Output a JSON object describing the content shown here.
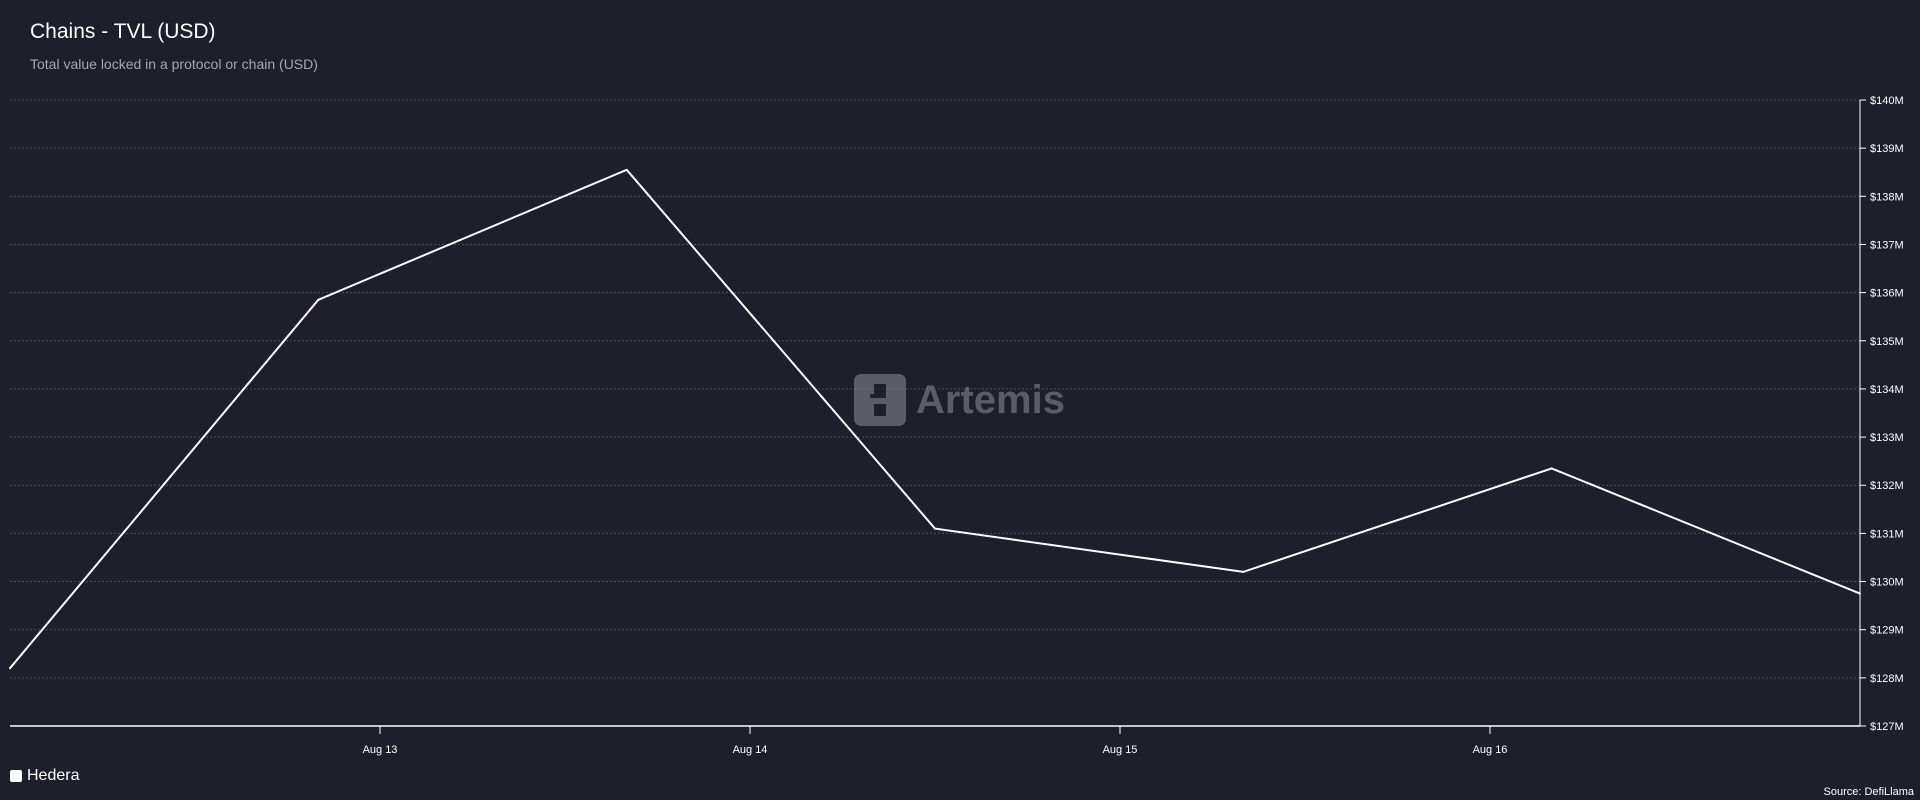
{
  "header": {
    "title": "Chains - TVL (USD)",
    "subtitle": "Total value locked in a protocol or chain (USD)"
  },
  "footer": {
    "source": "Source: DefiLlama"
  },
  "watermark": {
    "brand": "Artemis",
    "icon": "artemis-logo-icon"
  },
  "colors": {
    "background": "#1d1f2a",
    "line": "#ffffff",
    "grid": "#4a4d5a",
    "text": "#ffffff",
    "subtitle": "#a3a6b4"
  },
  "chart_data": {
    "type": "line",
    "title": "Chains - TVL (USD)",
    "subtitle": "Total value locked in a protocol or chain (USD)",
    "xlabel": "",
    "ylabel": "",
    "x": [
      "2024-08-12",
      "2024-08-12T20:00",
      "2024-08-13T16:00",
      "2024-08-14T12:00",
      "2024-08-15T08:00",
      "2024-08-16T04:00",
      "2024-08-17T00:00"
    ],
    "xlim": [
      "2024-08-12",
      "2024-08-17T00:00"
    ],
    "x_ticks": [
      "2024-08-13",
      "2024-08-14",
      "2024-08-15",
      "2024-08-16"
    ],
    "x_tick_labels": [
      "Aug 13",
      "Aug 14",
      "Aug 15",
      "Aug 16"
    ],
    "series": [
      {
        "name": "Hedera",
        "color": "#ffffff",
        "values": [
          128.2,
          135.85,
          138.55,
          131.1,
          130.2,
          132.35,
          129.75
        ]
      }
    ],
    "ylim": [
      127,
      140
    ],
    "y_ticks": [
      127,
      128,
      129,
      130,
      131,
      132,
      133,
      134,
      135,
      136,
      137,
      138,
      139,
      140
    ],
    "y_tick_labels": [
      "$127M",
      "$128M",
      "$129M",
      "$130M",
      "$131M",
      "$132M",
      "$133M",
      "$134M",
      "$135M",
      "$136M",
      "$137M",
      "$138M",
      "$139M",
      "$140M"
    ],
    "y_axis_side": "right",
    "grid": true,
    "legend": "bottom-left"
  }
}
